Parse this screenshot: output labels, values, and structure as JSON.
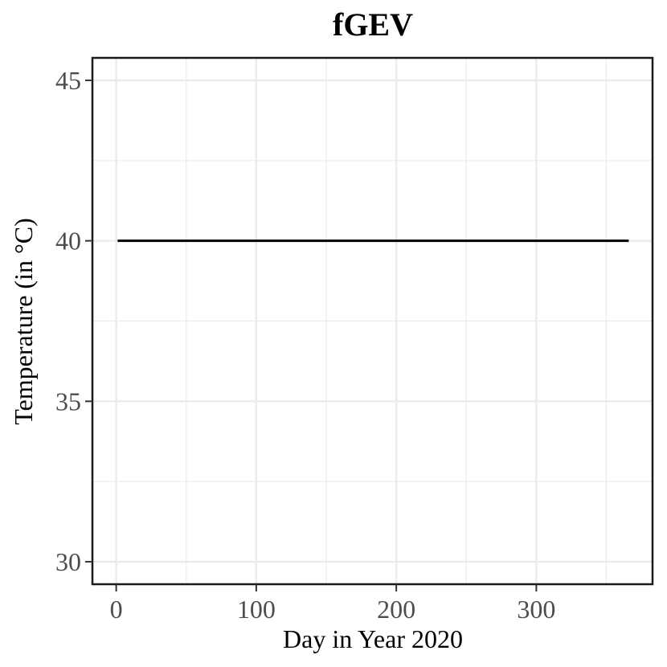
{
  "chart_data": {
    "type": "line",
    "title": "fGEV",
    "xlabel": "Day in Year 2020",
    "ylabel": "Temperature (in °C)",
    "xlim": [
      -17,
      383
    ],
    "ylim": [
      29.3,
      45.7
    ],
    "x_ticks": [
      0,
      100,
      200,
      300
    ],
    "x_minor_ticks": [
      50,
      150,
      250,
      350
    ],
    "y_ticks": [
      30,
      35,
      40,
      45
    ],
    "y_minor_ticks": [
      32.5,
      37.5,
      42.5
    ],
    "grid": true,
    "legend": "none",
    "series": [
      {
        "x": [
          1,
          366
        ],
        "y": [
          40,
          40
        ],
        "color": "#000000"
      }
    ]
  }
}
